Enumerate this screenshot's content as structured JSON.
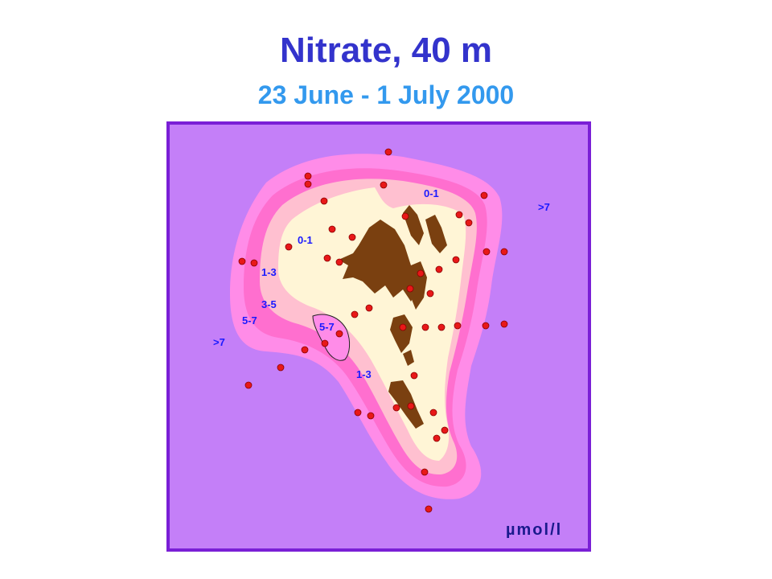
{
  "title": "Nitrate, 40 m",
  "subtitle": "23 June - 1 July 2000",
  "unit": "µmol/l",
  "colors": {
    "frame": "#7a1fd6",
    "zone_gt7": "#c47ff8",
    "zone_5_7": "#ff8ce8",
    "zone_3_5": "#ff6fcf",
    "zone_1_3": "#ffc0d0",
    "zone_0_1": "#fff5d6",
    "land": "#7a4010",
    "station": "#e81818",
    "label": "#1a1aff"
  },
  "contour_labels": [
    ">7",
    "0-1",
    "0-1",
    "1-3",
    "3-5",
    "5-7",
    "5-7",
    ">7",
    "1-3"
  ],
  "station_count": 50
}
